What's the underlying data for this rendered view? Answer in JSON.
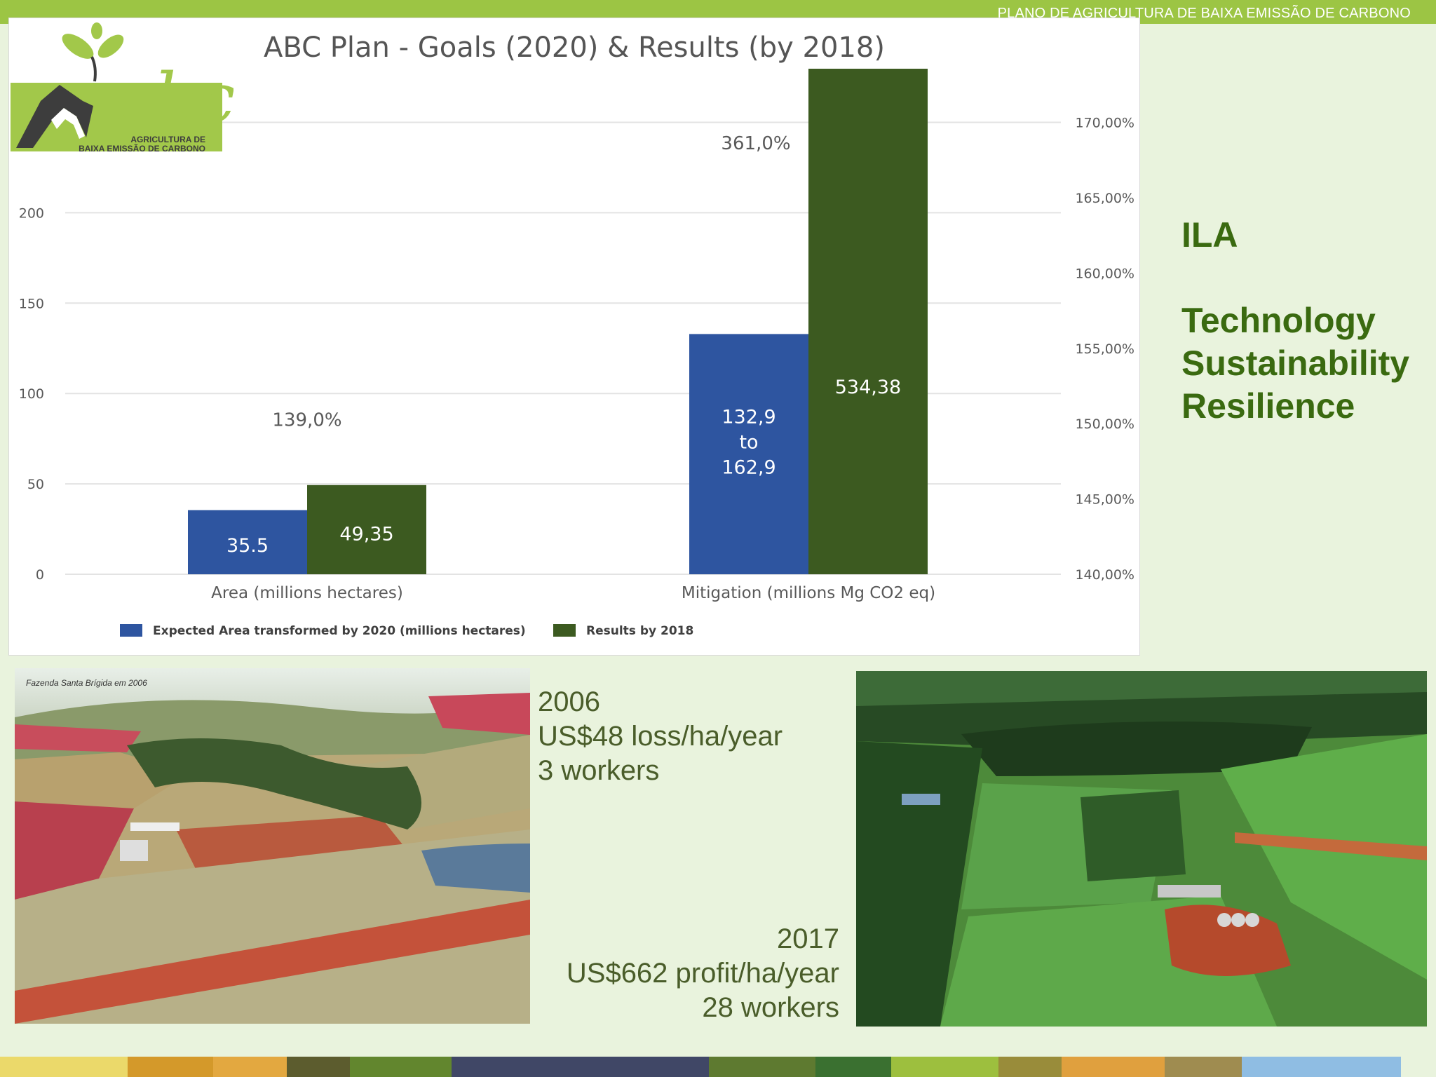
{
  "header": {
    "text": "PLANO DE AGRICULTURA DE BAIXA EMISSÃO DE CARBONO"
  },
  "chart_data": {
    "type": "bar",
    "title": "ABC Plan - Goals (2020) & Results (by 2018)",
    "categories": [
      "Area (millions hectares)",
      "Mitigation (millions Mg CO2 eq)"
    ],
    "series": [
      {
        "name": "Expected Area transformed by 2020 (millions hectares)",
        "values": [
          35.5,
          132.9
        ],
        "color": "#2e55a0",
        "labels": [
          "35.5",
          "132,9\nto\n162,9"
        ]
      },
      {
        "name": "Results by 2018",
        "values": [
          49.35,
          534.38
        ],
        "color": "#3c5a20",
        "labels": [
          "49,35",
          "534,38"
        ]
      }
    ],
    "percent_labels": [
      "139,0%",
      "361,0%"
    ],
    "ylim": [
      0,
      250
    ],
    "yticks": [
      "0",
      "50",
      "100",
      "150",
      "200",
      "250"
    ],
    "y2ticks": [
      "140,00%",
      "145,00%",
      "150,00%",
      "155,00%",
      "160,00%",
      "165,00%",
      "170,00%"
    ],
    "grid": true,
    "legend_position": "bottom"
  },
  "logo": {
    "wordmark": "abc",
    "line1": "AGRICULTURA DE",
    "line2": "BAIXA EMISSÃO DE CARBONO"
  },
  "side_text": {
    "acronym": "ILA",
    "items": [
      "Technology",
      "Sustainability",
      "Resilience"
    ]
  },
  "photo_2006": {
    "caption": "Fazenda Santa Brígida em 2006"
  },
  "info_2006": {
    "year": "2006",
    "economics": "US$48 loss/ha/year",
    "workers": "3 workers"
  },
  "info_2017": {
    "year": "2017",
    "economics": "US$662 profit/ha/year",
    "workers": "28 workers"
  },
  "colors": {
    "header_bar": "#9cc544",
    "background": "#e9f3dd",
    "accent_text": "#3a6a10",
    "expected_bar": "#2e55a0",
    "results_bar": "#3c5a20"
  },
  "stripe_colors": [
    "#ebd96a",
    "#d4992a",
    "#e3a840",
    "#5c5c2e",
    "#62862e",
    "#404766",
    "#5e7a30",
    "#3a7030",
    "#9dbf3e",
    "#998c3a",
    "#e0a03e",
    "#9f8c50",
    "#8fbde3"
  ]
}
